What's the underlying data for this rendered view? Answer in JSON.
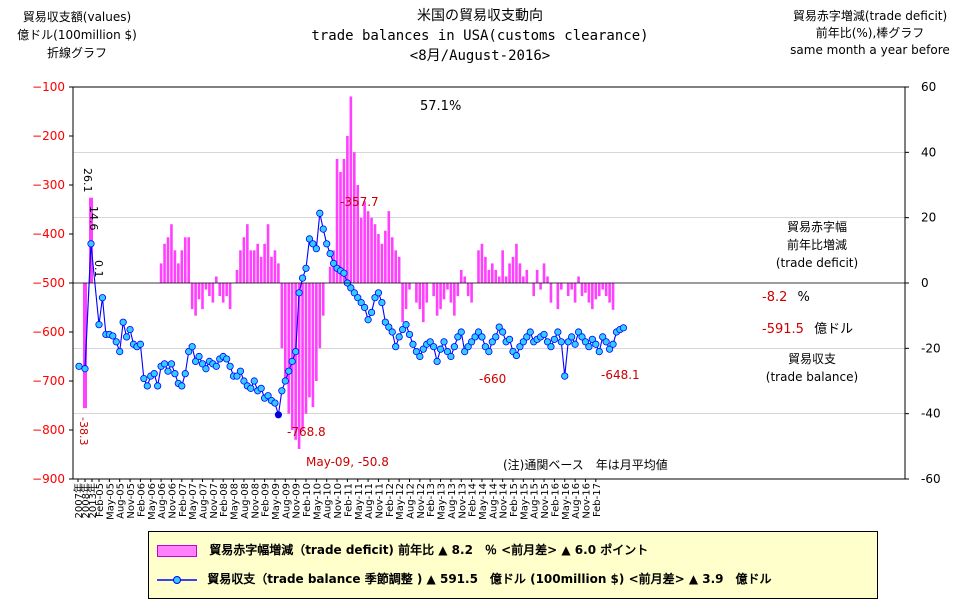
{
  "title": {
    "line1": "米国の貿易収支動向",
    "line2": "trade balances in USA(customs clearance)",
    "line3": "<8月/August-2016>"
  },
  "left_caption": [
    "貿易収支額(values)",
    "億ドル(100million $)",
    "折線グラフ"
  ],
  "right_caption": [
    "貿易赤字増減(trade deficit)",
    "前年比(%),棒グラフ",
    "same month  a year before"
  ],
  "side_labels": {
    "deficit": [
      "貿易赤字幅",
      "前年比増減",
      "(trade deficit)"
    ],
    "balance": [
      "貿易収支",
      "(trade balance)"
    ],
    "deficit_value": "-8.2",
    "deficit_unit": "%",
    "balance_value": "-591.5",
    "balance_unit": "億ドル"
  },
  "note": "(注)通関ベース　年は月平均値",
  "legend": {
    "deficit": "貿易赤字幅増減（trade deficit) 前年比 ▲ 8.2　％ <前月差> ▲ 6.0 ポイント",
    "balance": "貿易収支（trade balance 季節調整 ) ▲ 591.5　億ドル (100million $) <前月差> ▲ 3.9　億ドル"
  },
  "colors": {
    "bars": "#ff40ff",
    "line": "#0000ff",
    "markers": "#33ccff",
    "left_axis": "#ff0000",
    "labels": "#cc0000",
    "legend_bg": "#ffffcc",
    "grid": "#c0c0c0"
  },
  "chart_data": {
    "type": "bar+line",
    "left_axis": {
      "label": "億ドル",
      "ylim": [
        -900,
        -100
      ],
      "ticks": [
        -100,
        -200,
        -300,
        -400,
        -500,
        -600,
        -700,
        -800,
        -900
      ]
    },
    "right_axis": {
      "label": "%",
      "ylim": [
        -60,
        60
      ],
      "ticks": [
        60,
        40,
        20,
        0,
        -20,
        -40,
        -60
      ]
    },
    "x_tick_labels": [
      "2007年",
      "2008年",
      "2013年",
      "Feb-05",
      "May-05",
      "Aug-05",
      "Nov-05",
      "Feb-06",
      "May-06",
      "Aug-06",
      "Nov-06",
      "Feb-07",
      "May-07",
      "Aug-07",
      "Nov-07",
      "Feb-08",
      "May-08",
      "Aug-08",
      "Nov-08",
      "Feb-09",
      "May-09",
      "Aug-09",
      "Nov-09",
      "Feb-10",
      "May-10",
      "Aug-10",
      "Nov-10",
      "Feb-11",
      "May-11",
      "Aug-11",
      "Nov-11",
      "Feb-12",
      "May-12",
      "Aug-12",
      "Nov-12",
      "Feb-13",
      "May-13",
      "Aug-13",
      "Nov-13",
      "Feb-14",
      "May-14",
      "Aug-14",
      "Nov-14",
      "Feb-15",
      "May-15",
      "Aug-15",
      "Nov-15",
      "Feb-16",
      "May-16",
      "Aug-16",
      "Nov-16",
      "Feb-17"
    ],
    "annual": [
      {
        "period": "2007年",
        "balance": -670,
        "deficit": 0
      },
      {
        "period": "2008年",
        "balance": -675,
        "deficit": -38.3
      },
      {
        "period": "2013年",
        "balance": -420,
        "deficit": 26.1
      }
    ],
    "annual_bar_labels": [
      "-38.3",
      "26.1",
      "14.6",
      "0.1"
    ],
    "monthly_balance": [
      -585,
      -530,
      -605,
      -605,
      -608,
      -620,
      -640,
      -580,
      -610,
      -595,
      -625,
      -630,
      -625,
      -695,
      -710,
      -690,
      -685,
      -710,
      -670,
      -665,
      -680,
      -665,
      -685,
      -705,
      -710,
      -685,
      -640,
      -630,
      -660,
      -650,
      -665,
      -675,
      -660,
      -665,
      -670,
      -655,
      -650,
      -655,
      -670,
      -690,
      -690,
      -680,
      -700,
      -710,
      -715,
      -700,
      -720,
      -715,
      -735,
      -730,
      -740,
      -745,
      -769,
      -720,
      -700,
      -680,
      -660,
      -640,
      -520,
      -490,
      -470,
      -410,
      -420,
      -430,
      -357.7,
      -390,
      -420,
      -440,
      -460,
      -470,
      -475,
      -480,
      -500,
      -510,
      -520,
      -530,
      -540,
      -550,
      -575,
      -560,
      -530,
      -520,
      -540,
      -580,
      -590,
      -600,
      -630,
      -610,
      -595,
      -585,
      -605,
      -625,
      -640,
      -650,
      -635,
      -625,
      -620,
      -630,
      -660,
      -635,
      -620,
      -640,
      -650,
      -630,
      -610,
      -600,
      -640,
      -630,
      -620,
      -610,
      -600,
      -610,
      -630,
      -640,
      -620,
      -610,
      -590,
      -600,
      -620,
      -615,
      -640,
      -648.1,
      -630,
      -620,
      -610,
      -600,
      -620,
      -615,
      -610,
      -605,
      -620,
      -630,
      -615,
      -600,
      -620,
      -690,
      -620,
      -610,
      -625,
      -600,
      -610,
      -620,
      -630,
      -615,
      -625,
      -640,
      -610,
      -620,
      -635,
      -625,
      -600,
      -595,
      -591.5
    ],
    "monthly_deficit": [
      0,
      0,
      0,
      0,
      0,
      0,
      0,
      0,
      0,
      0,
      0,
      0,
      0,
      0,
      0,
      0,
      0,
      0,
      6,
      12,
      14,
      18,
      10,
      6,
      10,
      14,
      14,
      -8,
      -10,
      -5,
      -8,
      -2,
      -4,
      -6,
      2,
      -4,
      -6,
      -4,
      -8,
      0,
      4,
      10,
      14,
      18,
      10,
      10,
      12,
      8,
      12,
      18,
      8,
      10,
      6,
      -20,
      -30,
      -40,
      -45,
      -48,
      -50.8,
      -45,
      -40,
      -35,
      -38,
      -30,
      -20,
      -10,
      0,
      5,
      10,
      38,
      34,
      38,
      45,
      57.1,
      40,
      30,
      20,
      25,
      22,
      20,
      18,
      15,
      12,
      16,
      22,
      14,
      10,
      8,
      -12,
      -8,
      -2,
      0,
      -6,
      -8,
      -12,
      -6,
      0,
      -4,
      -10,
      -8,
      -5,
      -2,
      -6,
      -10,
      -4,
      4,
      2,
      -4,
      -6,
      0,
      10,
      12,
      8,
      4,
      6,
      4,
      2,
      10,
      2,
      6,
      8,
      12,
      6,
      2,
      4,
      0,
      -4,
      4,
      -2,
      6,
      2,
      -6,
      0,
      -8,
      -2,
      0,
      -4,
      -2,
      -6,
      2,
      -4,
      -3,
      -6,
      -8,
      -5,
      -4,
      -2,
      -4,
      -6,
      -8.2
    ],
    "annotations": [
      "57.1%",
      "-357.7",
      "-768.8",
      "May-09, -50.8",
      "-660",
      "-648.1"
    ]
  }
}
